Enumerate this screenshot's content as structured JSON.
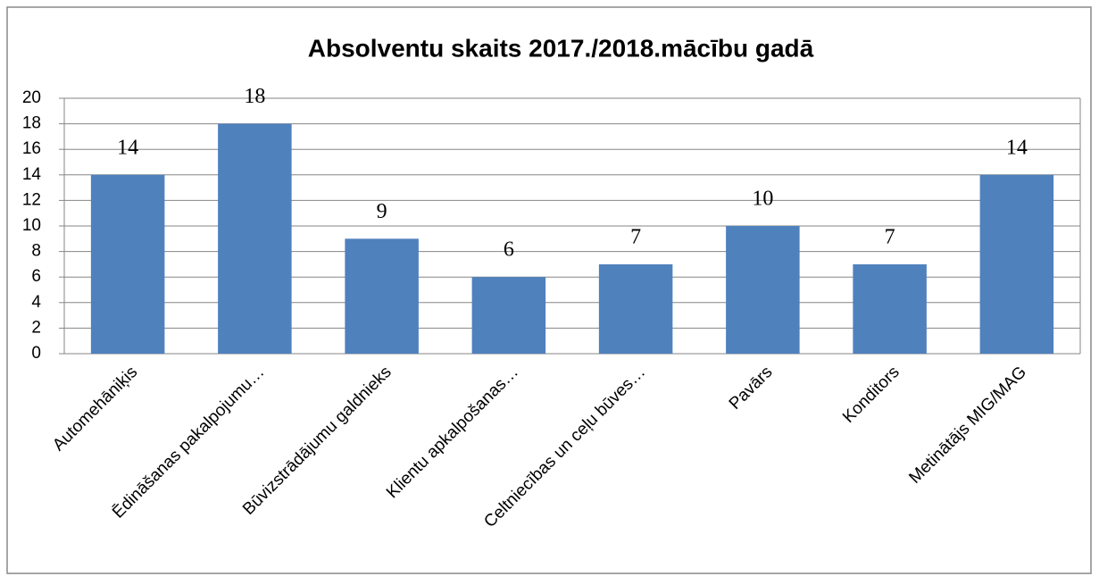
{
  "chart_data": {
    "type": "bar",
    "title": "Absolventu skaits 2017./2018.mācību gadā",
    "categories": [
      "Automehāniķis",
      "Ēdināšanas pakalpojumu…",
      "Būvizstrādājumu galdnieks",
      "Klientu apkalpošanas…",
      "Celtniecības un ceļu būves…",
      "Pavārs",
      "Konditors",
      "Metinātājs MIG/MAG"
    ],
    "values": [
      14,
      18,
      9,
      6,
      7,
      10,
      7,
      14
    ],
    "color": "#4f81bd",
    "ylim": [
      0,
      20
    ],
    "yticks": [
      0,
      2,
      4,
      6,
      8,
      10,
      12,
      14,
      16,
      18,
      20
    ],
    "grid": true
  }
}
